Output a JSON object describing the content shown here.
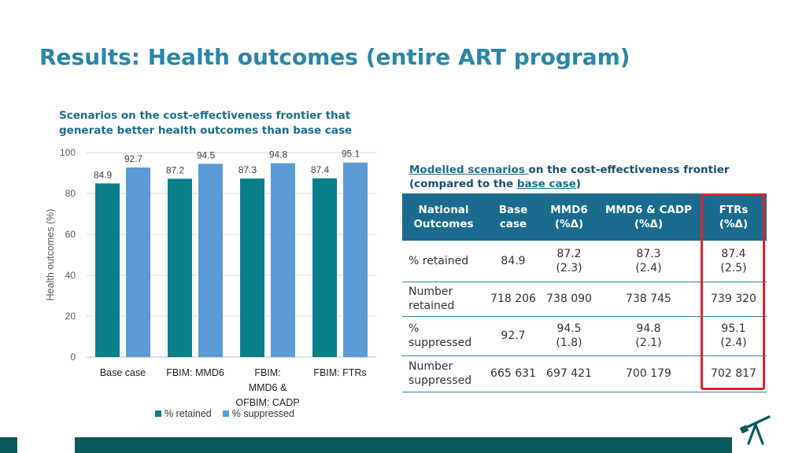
{
  "slide": {
    "title": "Results: Health outcomes (entire ART program)"
  },
  "chart_section": {
    "subtitle": "Scenarios on the cost-effectiveness frontier that generate better health outcomes than base case"
  },
  "chart_data": {
    "type": "bar",
    "categories": [
      [
        "Base case"
      ],
      [
        "FBIM: MMD6"
      ],
      [
        "FBIM:",
        "MMD6 &",
        "OFBIM: CADP"
      ],
      [
        "FBIM: FTRs"
      ]
    ],
    "series": [
      {
        "name": "% retained",
        "values": [
          84.9,
          87.2,
          87.3,
          87.4
        ],
        "color": "#0a7f8a"
      },
      {
        "name": "% suppressed",
        "values": [
          92.7,
          94.5,
          94.8,
          95.1
        ],
        "color": "#5b9bd5"
      }
    ],
    "ylabel": "Health outcomes (%)",
    "ylim": [
      0,
      100
    ],
    "yticks": [
      0,
      20,
      40,
      60,
      80,
      100
    ],
    "grid": true,
    "legend": "bottom"
  },
  "table": {
    "caption_part1": "Modelled scenarios ",
    "caption_part2": "on the cost-effectiveness frontier (compared to the ",
    "caption_part3": "base case",
    "caption_part4": ")",
    "headers": [
      [
        "National",
        "Outcomes"
      ],
      [
        "Base",
        "case"
      ],
      [
        "MMD6",
        "(%Δ)"
      ],
      [
        "MMD6 & CADP",
        "(%Δ)"
      ],
      [
        "FTRs",
        "(%Δ)"
      ]
    ],
    "rows": [
      {
        "label": [
          "% retained"
        ],
        "cells": [
          [
            "84.9"
          ],
          [
            "87.2",
            "(2.3)"
          ],
          [
            "87.3",
            "(2.4)"
          ],
          [
            "87.4",
            "(2.5)"
          ]
        ]
      },
      {
        "label": [
          "Number",
          "retained"
        ],
        "cells": [
          [
            "718 206"
          ],
          [
            "738 090"
          ],
          [
            "738 745"
          ],
          [
            "739 320"
          ]
        ]
      },
      {
        "label": [
          "%",
          "suppressed"
        ],
        "cells": [
          [
            "92.7"
          ],
          [
            "94.5",
            "(1.8)"
          ],
          [
            "94.8",
            "(2.1)"
          ],
          [
            "95.1",
            "(2.4)"
          ]
        ]
      },
      {
        "label": [
          "Number",
          "suppressed"
        ],
        "cells": [
          [
            "665 631"
          ],
          [
            "697 421"
          ],
          [
            "700 179"
          ],
          [
            "702 817"
          ]
        ]
      }
    ],
    "highlight_color": "#e0232a"
  },
  "footer": {
    "logo_icon": "telescope-icon",
    "bar_color": "#0b5a5c"
  }
}
